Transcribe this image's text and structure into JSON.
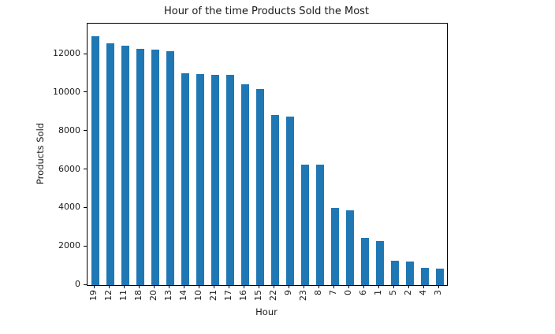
{
  "chart_data": {
    "type": "bar",
    "title": "Hour of the time Products Sold the Most",
    "xlabel": "Hour",
    "ylabel": "Products Sold",
    "categories": [
      "19",
      "12",
      "11",
      "18",
      "20",
      "13",
      "14",
      "10",
      "21",
      "17",
      "16",
      "15",
      "22",
      "9",
      "23",
      "8",
      "7",
      "0",
      "6",
      "1",
      "5",
      "2",
      "4",
      "3"
    ],
    "values": [
      12950,
      12590,
      12440,
      12300,
      12250,
      12150,
      11030,
      10970,
      10950,
      10920,
      10440,
      10200,
      8840,
      8770,
      6280,
      6280,
      4010,
      3910,
      2440,
      2310,
      1290,
      1210,
      900,
      860
    ],
    "yticks": [
      0,
      2000,
      4000,
      6000,
      8000,
      10000,
      12000
    ],
    "ylim": [
      0,
      13600
    ],
    "bar_color": "#1f77b4",
    "grid": false,
    "legend_position": "none"
  }
}
